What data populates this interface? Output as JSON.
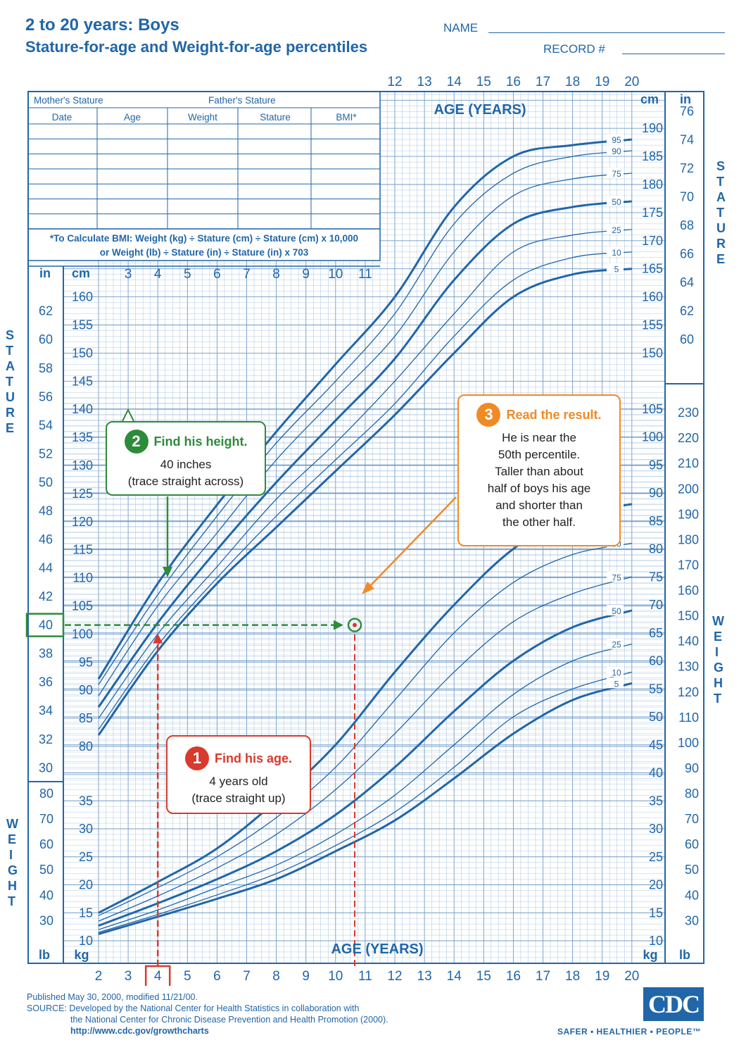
{
  "header": {
    "title_line1": "2 to 20 years: Boys",
    "title_line2": "Stature-for-age and Weight-for-age percentiles",
    "name_label": "NAME",
    "record_label": "RECORD #"
  },
  "record_table": {
    "mother_label": "Mother's Stature",
    "father_label": "Father's Stature",
    "columns": [
      "Date",
      "Age",
      "Weight",
      "Stature",
      "BMI*"
    ],
    "bmi_note_line1": "*To Calculate BMI: Weight (kg) ÷ Stature (cm) ÷ Stature (cm) x 10,000",
    "bmi_note_line2": "or Weight (lb) ÷ Stature (in) ÷ Stature (in) x 703"
  },
  "side_labels": {
    "stature": "S T A T U R E",
    "weight": "W E I G H T"
  },
  "callouts": {
    "age": {
      "num": "1",
      "title": "Find his age.",
      "line1": "4 years old",
      "line2": "(trace straight up)"
    },
    "height": {
      "num": "2",
      "title": "Find his height.",
      "line1": "40 inches",
      "line2": "(trace straight across)"
    },
    "result": {
      "num": "3",
      "title": "Read the result.",
      "line1": "He is near the",
      "line2": "50th percentile.",
      "line3": "Taller than about",
      "line4": "half of boys his age",
      "line5": "and shorter than",
      "line6": "the other half."
    }
  },
  "footer": {
    "published": "Published May 30, 2000, modified 11/21/00.",
    "source1": "SOURCE: Developed by the National Center for Health Statistics in collaboration with",
    "source2": "the National Center for Chronic Disease Prevention and Health Promotion (2000).",
    "url": "http://www.cdc.gov/growthcharts",
    "logo": "CDC",
    "tagline": "SAFER • HEALTHIER • PEOPLE™"
  },
  "colors": {
    "chart_blue": "#2166a8",
    "grid": "#8fb4d9",
    "red": "#d83a2e",
    "green": "#2e8b3a",
    "orange": "#f08a24"
  },
  "chart_data": {
    "type": "line",
    "title": "Stature-for-age and Weight-for-age percentiles",
    "x_axis_title": "AGE (YEARS)",
    "x_ticks_top": [
      12,
      13,
      14,
      15,
      16,
      17,
      18,
      19,
      20
    ],
    "x_ticks_inner": [
      3,
      4,
      5,
      6,
      7,
      8,
      9,
      10,
      11
    ],
    "x_ticks_bottom": [
      2,
      3,
      4,
      5,
      6,
      7,
      8,
      9,
      10,
      11,
      12,
      13,
      14,
      15,
      16,
      17,
      18,
      19,
      20
    ],
    "xlim": [
      2,
      20
    ],
    "stature_cm_ticks_left": [
      80,
      85,
      90,
      95,
      100,
      105,
      110,
      115,
      120,
      125,
      130,
      135,
      140,
      145,
      150,
      155,
      160
    ],
    "stature_cm_ticks_right": [
      150,
      155,
      160,
      165,
      170,
      175,
      180,
      185,
      190
    ],
    "stature_in_ticks_left": [
      30,
      32,
      34,
      36,
      38,
      40,
      42,
      44,
      46,
      48,
      50,
      52,
      54,
      56,
      58,
      60,
      62
    ],
    "stature_in_ticks_right": [
      60,
      62,
      64,
      66,
      68,
      70,
      72,
      74,
      76
    ],
    "weight_kg_ticks_left": [
      10,
      15,
      20,
      25,
      30,
      35
    ],
    "weight_kg_ticks_right": [
      10,
      15,
      20,
      25,
      30,
      35,
      40,
      45,
      50,
      55,
      60,
      65,
      70,
      75,
      80,
      85,
      90,
      95,
      100,
      105
    ],
    "weight_lb_ticks_left": [
      30,
      40,
      50,
      60,
      70,
      80
    ],
    "weight_lb_ticks_right": [
      30,
      40,
      50,
      60,
      70,
      80,
      90,
      100,
      110,
      120,
      130,
      140,
      150,
      160,
      170,
      180,
      190,
      200,
      210,
      220,
      230
    ],
    "unit_labels": {
      "cm": "cm",
      "in": "in",
      "kg": "kg",
      "lb": "lb"
    },
    "percentile_labels": [
      "95",
      "90",
      "75",
      "50",
      "25",
      "10",
      "5"
    ],
    "stature_series": [
      {
        "name": "95",
        "x": [
          2,
          4,
          6,
          8,
          10,
          12,
          14,
          16,
          18,
          20
        ],
        "y": [
          92,
          109,
          123,
          136,
          148,
          160,
          176,
          185,
          187,
          188
        ]
      },
      {
        "name": "90",
        "x": [
          2,
          4,
          6,
          8,
          10,
          12,
          14,
          16,
          18,
          20
        ],
        "y": [
          91,
          107,
          121,
          134,
          145,
          157,
          173,
          182,
          185,
          186
        ]
      },
      {
        "name": "75",
        "x": [
          2,
          4,
          6,
          8,
          10,
          12,
          14,
          16,
          18,
          20
        ],
        "y": [
          89,
          105,
          118,
          131,
          142,
          153,
          168,
          178,
          181,
          182
        ]
      },
      {
        "name": "50",
        "x": [
          2,
          4,
          6,
          8,
          10,
          12,
          14,
          16,
          18,
          20
        ],
        "y": [
          87,
          102,
          115,
          127,
          138,
          149,
          163,
          173,
          176,
          177
        ]
      },
      {
        "name": "25",
        "x": [
          2,
          4,
          6,
          8,
          10,
          12,
          14,
          16,
          18,
          20
        ],
        "y": [
          85,
          100,
          112,
          124,
          134,
          145,
          157,
          168,
          171,
          172
        ]
      },
      {
        "name": "10",
        "x": [
          2,
          4,
          6,
          8,
          10,
          12,
          14,
          16,
          18,
          20
        ],
        "y": [
          83,
          98,
          110,
          121,
          131,
          141,
          153,
          163,
          167,
          168
        ]
      },
      {
        "name": "5",
        "x": [
          2,
          4,
          6,
          8,
          10,
          12,
          14,
          16,
          18,
          20
        ],
        "y": [
          82,
          97,
          109,
          119,
          129,
          139,
          150,
          160,
          164,
          165
        ]
      }
    ],
    "weight_series": [
      {
        "name": "95",
        "x": [
          2,
          4,
          6,
          8,
          10,
          12,
          14,
          16,
          18,
          20
        ],
        "y": [
          15,
          20.5,
          26.5,
          35,
          45,
          58,
          70,
          80,
          86,
          88
        ]
      },
      {
        "name": "90",
        "x": [
          2,
          4,
          6,
          8,
          10,
          12,
          14,
          16,
          18,
          20
        ],
        "y": [
          14.5,
          19.5,
          25,
          32,
          41,
          53,
          65,
          74,
          79,
          81
        ]
      },
      {
        "name": "75",
        "x": [
          2,
          4,
          6,
          8,
          10,
          12,
          14,
          16,
          18,
          20
        ],
        "y": [
          13.5,
          18,
          23,
          29,
          37,
          47,
          58,
          67,
          72,
          75
        ]
      },
      {
        "name": "50",
        "x": [
          2,
          4,
          6,
          8,
          10,
          12,
          14,
          16,
          18,
          20
        ],
        "y": [
          12.7,
          16.7,
          21,
          26,
          32.5,
          41,
          51,
          60,
          66,
          69
        ]
      },
      {
        "name": "25",
        "x": [
          2,
          4,
          6,
          8,
          10,
          12,
          14,
          16,
          18,
          20
        ],
        "y": [
          12,
          15.5,
          19.5,
          23.5,
          29,
          36,
          45,
          54,
          60,
          63
        ]
      },
      {
        "name": "10",
        "x": [
          2,
          4,
          6,
          8,
          10,
          12,
          14,
          16,
          18,
          20
        ],
        "y": [
          11.5,
          14.7,
          18.2,
          22,
          27,
          33,
          41,
          50,
          55,
          58
        ]
      },
      {
        "name": "5",
        "x": [
          2,
          4,
          6,
          8,
          10,
          12,
          14,
          16,
          18,
          20
        ],
        "y": [
          11.2,
          14.3,
          17.5,
          21,
          26,
          31.5,
          39,
          47,
          53,
          56
        ]
      }
    ],
    "annotation_point": {
      "age_years": 4,
      "stature_in": 40
    },
    "grid": true
  }
}
